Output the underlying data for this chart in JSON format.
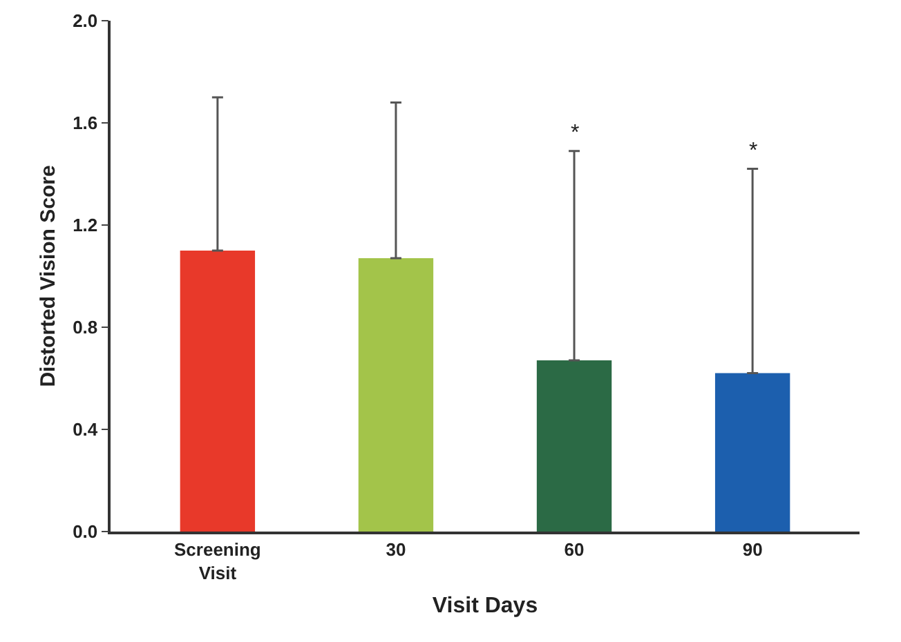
{
  "chart_data": {
    "type": "bar",
    "xlabel": "Visit Days",
    "ylabel": "Distorted Vision Score",
    "categories": [
      "Screening\nVisit",
      "30",
      "60",
      "90"
    ],
    "values": [
      1.1,
      1.07,
      0.67,
      0.62
    ],
    "colors": [
      "#e8392a",
      "#a3c44a",
      "#2b6a45",
      "#1c5fae"
    ],
    "errors": [
      [
        1.1,
        1.7
      ],
      [
        1.07,
        1.68
      ],
      [
        0.67,
        1.49
      ],
      [
        0.62,
        1.42
      ]
    ],
    "ylim": [
      0,
      2.0
    ],
    "yticks": [
      {
        "value": 0,
        "label": "0.0"
      },
      {
        "value": 0.4,
        "label": "0.4"
      },
      {
        "value": 0.8,
        "label": "0.8"
      },
      {
        "value": 1.2,
        "label": "1.2"
      },
      {
        "value": 1.6,
        "label": "1.6"
      },
      {
        "value": 2.0,
        "label": "2.0"
      }
    ],
    "grid": false,
    "annotations": [
      {
        "text": "*",
        "x": "60",
        "y": 1.49
      },
      {
        "text": "*",
        "x": "90",
        "y": 1.42
      }
    ]
  }
}
